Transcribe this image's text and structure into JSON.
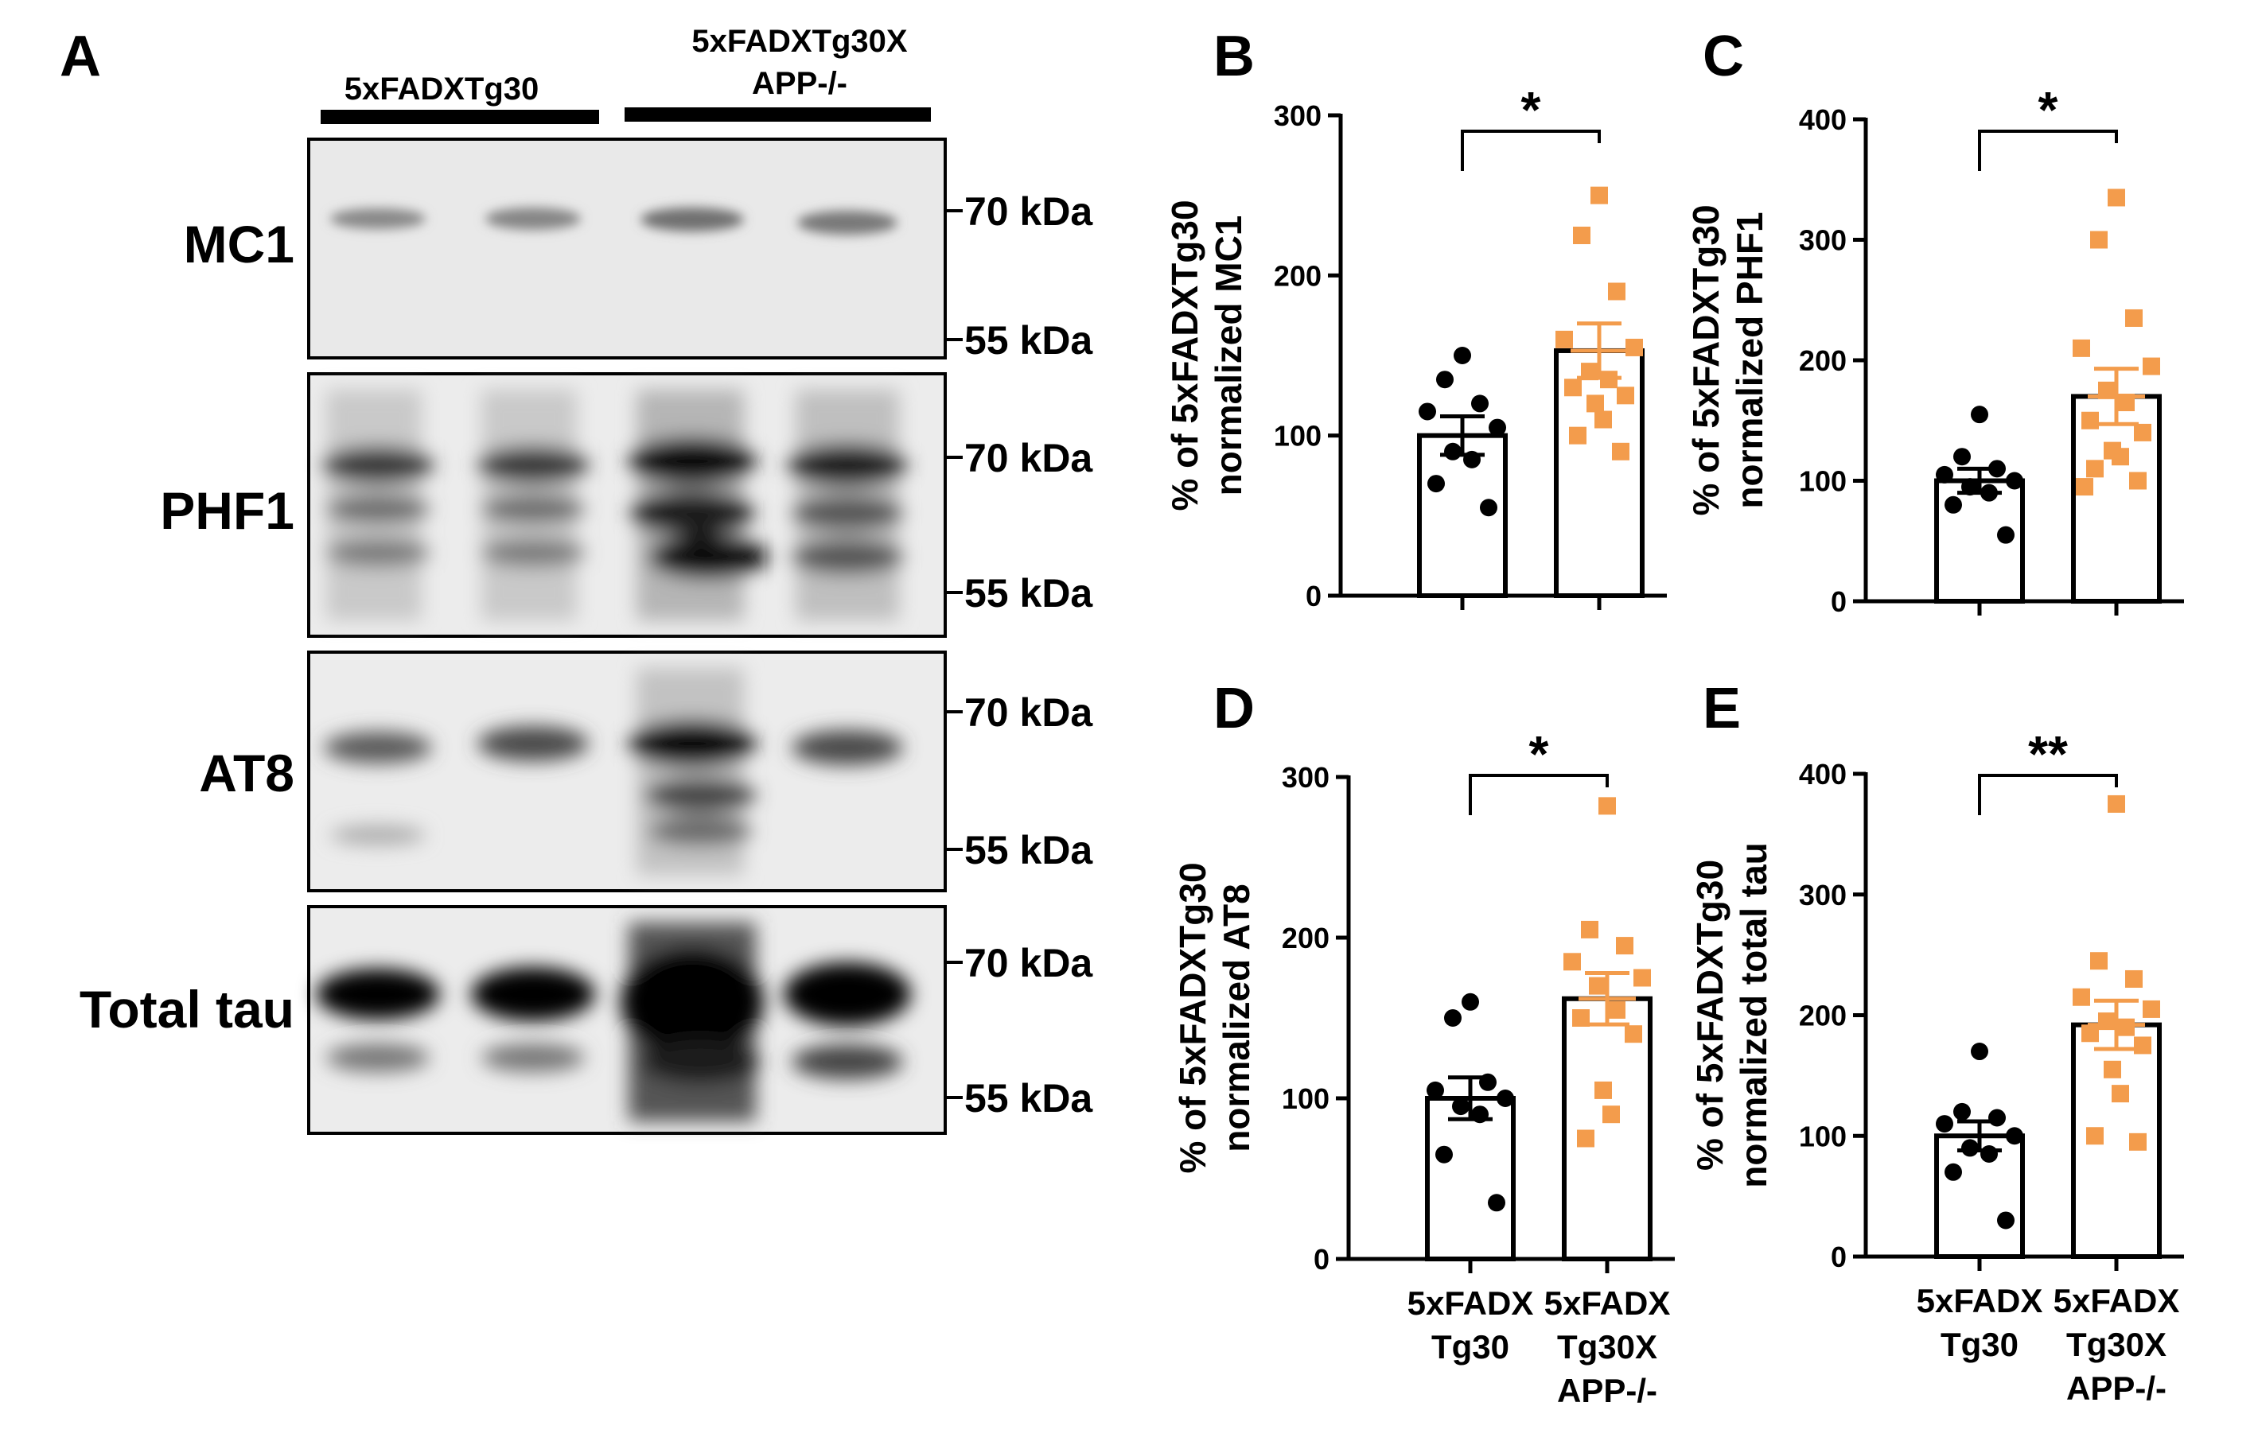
{
  "blot": {
    "panel_letter": "A",
    "group_labels": [
      {
        "lines": [
          "5xFADXTg30"
        ]
      },
      {
        "lines": [
          "5xFADXTg30X",
          "APP-/-"
        ]
      }
    ],
    "rows": [
      {
        "label": "MC1",
        "markers": [
          "70 kDa",
          "55 kDa"
        ]
      },
      {
        "label": "PHF1",
        "markers": [
          "70 kDa",
          "55 kDa"
        ]
      },
      {
        "label": "AT8",
        "markers": [
          "70 kDa",
          "55 kDa"
        ]
      },
      {
        "label": "Total tau",
        "markers": [
          "70 kDa",
          "55 kDa"
        ]
      }
    ]
  },
  "colors": {
    "control_points": "#000000",
    "ko_points": "#F39C4C",
    "bar_fill": "#ffffff",
    "bar_edge": "#000000"
  },
  "chart_data": [
    {
      "panel_letter": "B",
      "type": "bar",
      "ylabel_lines": [
        "% of 5xFADXTg30",
        "normalized MC1"
      ],
      "ylim": [
        0,
        300
      ],
      "yticks": [
        0,
        100,
        200,
        300
      ],
      "categories": [],
      "significance": "*",
      "bars": [
        {
          "mean": 100,
          "sem": 12,
          "points": [
            150,
            135,
            120,
            115,
            105,
            90,
            85,
            70,
            55
          ]
        },
        {
          "mean": 153,
          "sem": 17,
          "points": [
            250,
            225,
            190,
            160,
            155,
            140,
            135,
            130,
            125,
            120,
            110,
            100,
            90
          ]
        }
      ]
    },
    {
      "panel_letter": "C",
      "type": "bar",
      "ylabel_lines": [
        "% of 5xFADXTg30",
        "normalized PHF1"
      ],
      "ylim": [
        0,
        400
      ],
      "yticks": [
        0,
        100,
        200,
        300,
        400
      ],
      "categories": [],
      "significance": "*",
      "bars": [
        {
          "mean": 100,
          "sem": 10,
          "points": [
            155,
            120,
            110,
            105,
            100,
            95,
            90,
            80,
            55
          ]
        },
        {
          "mean": 170,
          "sem": 23,
          "points": [
            335,
            300,
            235,
            210,
            195,
            175,
            165,
            150,
            140,
            125,
            120,
            110,
            100,
            95
          ]
        }
      ]
    },
    {
      "panel_letter": "D",
      "type": "bar",
      "ylabel_lines": [
        "% of 5xFADXTg30",
        "normalized AT8"
      ],
      "ylim": [
        0,
        300
      ],
      "yticks": [
        0,
        100,
        200,
        300
      ],
      "categories": [
        [
          "5xFADX",
          "Tg30"
        ],
        [
          "5xFADX",
          "Tg30X",
          "APP-/-"
        ]
      ],
      "significance": "*",
      "bars": [
        {
          "mean": 100,
          "sem": 13,
          "points": [
            160,
            150,
            110,
            105,
            100,
            95,
            90,
            65,
            35
          ]
        },
        {
          "mean": 162,
          "sem": 16,
          "points": [
            282,
            205,
            195,
            185,
            175,
            170,
            155,
            150,
            140,
            105,
            90,
            75
          ]
        }
      ]
    },
    {
      "panel_letter": "E",
      "type": "bar",
      "ylabel_lines": [
        "% of 5xFADXTg30",
        "normalized total tau"
      ],
      "ylim": [
        0,
        400
      ],
      "yticks": [
        0,
        100,
        200,
        300,
        400
      ],
      "categories": [
        [
          "5xFADX",
          "Tg30"
        ],
        [
          "5xFADX",
          "Tg30X",
          "APP-/-"
        ]
      ],
      "significance": "**",
      "bars": [
        {
          "mean": 100,
          "sem": 12,
          "points": [
            170,
            120,
            115,
            110,
            100,
            90,
            85,
            70,
            30
          ]
        },
        {
          "mean": 192,
          "sem": 20,
          "points": [
            375,
            245,
            230,
            215,
            205,
            195,
            190,
            185,
            175,
            155,
            135,
            100,
            95
          ]
        }
      ]
    }
  ]
}
